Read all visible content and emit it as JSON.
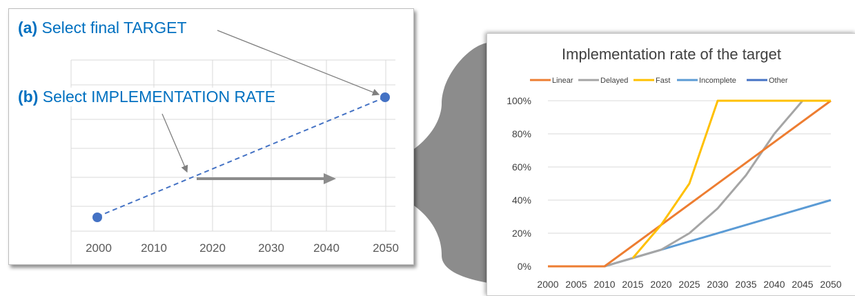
{
  "left_panel": {
    "step_a": {
      "letter": "(a)",
      "text": "Select final TARGET"
    },
    "step_b": {
      "letter": "(b)",
      "text": "Select IMPLEMENTATION RATE"
    },
    "x_ticks": [
      "2000",
      "2010",
      "2020",
      "2030",
      "2040",
      "2050"
    ],
    "marker_color": "#4472c4",
    "arrow_color": "#7f7f7f"
  },
  "chart_data": {
    "type": "line",
    "title": "Implementation rate of the target",
    "xlabel": "",
    "ylabel": "",
    "x": [
      2000,
      2005,
      2010,
      2015,
      2020,
      2025,
      2030,
      2035,
      2040,
      2045,
      2050
    ],
    "x_tick_labels": [
      "2000",
      "2005",
      "2010",
      "2015",
      "2020",
      "2025",
      "2030",
      "2035",
      "2040",
      "2045",
      "2050"
    ],
    "y_tick_labels": [
      "0%",
      "20%",
      "40%",
      "60%",
      "80%",
      "100%"
    ],
    "ylim": [
      0,
      100
    ],
    "grid": true,
    "legend_position": "top",
    "series": [
      {
        "name": "Linear",
        "color": "#ed7d31",
        "points": [
          [
            2000,
            0
          ],
          [
            2005,
            0
          ],
          [
            2010,
            0
          ],
          [
            2050,
            100
          ]
        ]
      },
      {
        "name": "Delayed",
        "color": "#a5a5a5",
        "points": [
          [
            2000,
            0
          ],
          [
            2005,
            0
          ],
          [
            2010,
            0
          ],
          [
            2015,
            5
          ],
          [
            2020,
            10
          ],
          [
            2025,
            20
          ],
          [
            2030,
            35
          ],
          [
            2035,
            55
          ],
          [
            2040,
            80
          ],
          [
            2045,
            100
          ],
          [
            2050,
            100
          ]
        ]
      },
      {
        "name": "Fast",
        "color": "#ffc000",
        "points": [
          [
            2015,
            5
          ],
          [
            2020,
            25
          ],
          [
            2025,
            50
          ],
          [
            2030,
            100
          ],
          [
            2035,
            100
          ],
          [
            2040,
            100
          ],
          [
            2045,
            100
          ],
          [
            2050,
            100
          ]
        ]
      },
      {
        "name": "Incomplete",
        "color": "#5b9bd5",
        "points": [
          [
            2000,
            0
          ],
          [
            2005,
            0
          ],
          [
            2010,
            0
          ],
          [
            2050,
            40
          ]
        ]
      },
      {
        "name": "Other",
        "color": "#4472c4",
        "points": []
      }
    ]
  }
}
